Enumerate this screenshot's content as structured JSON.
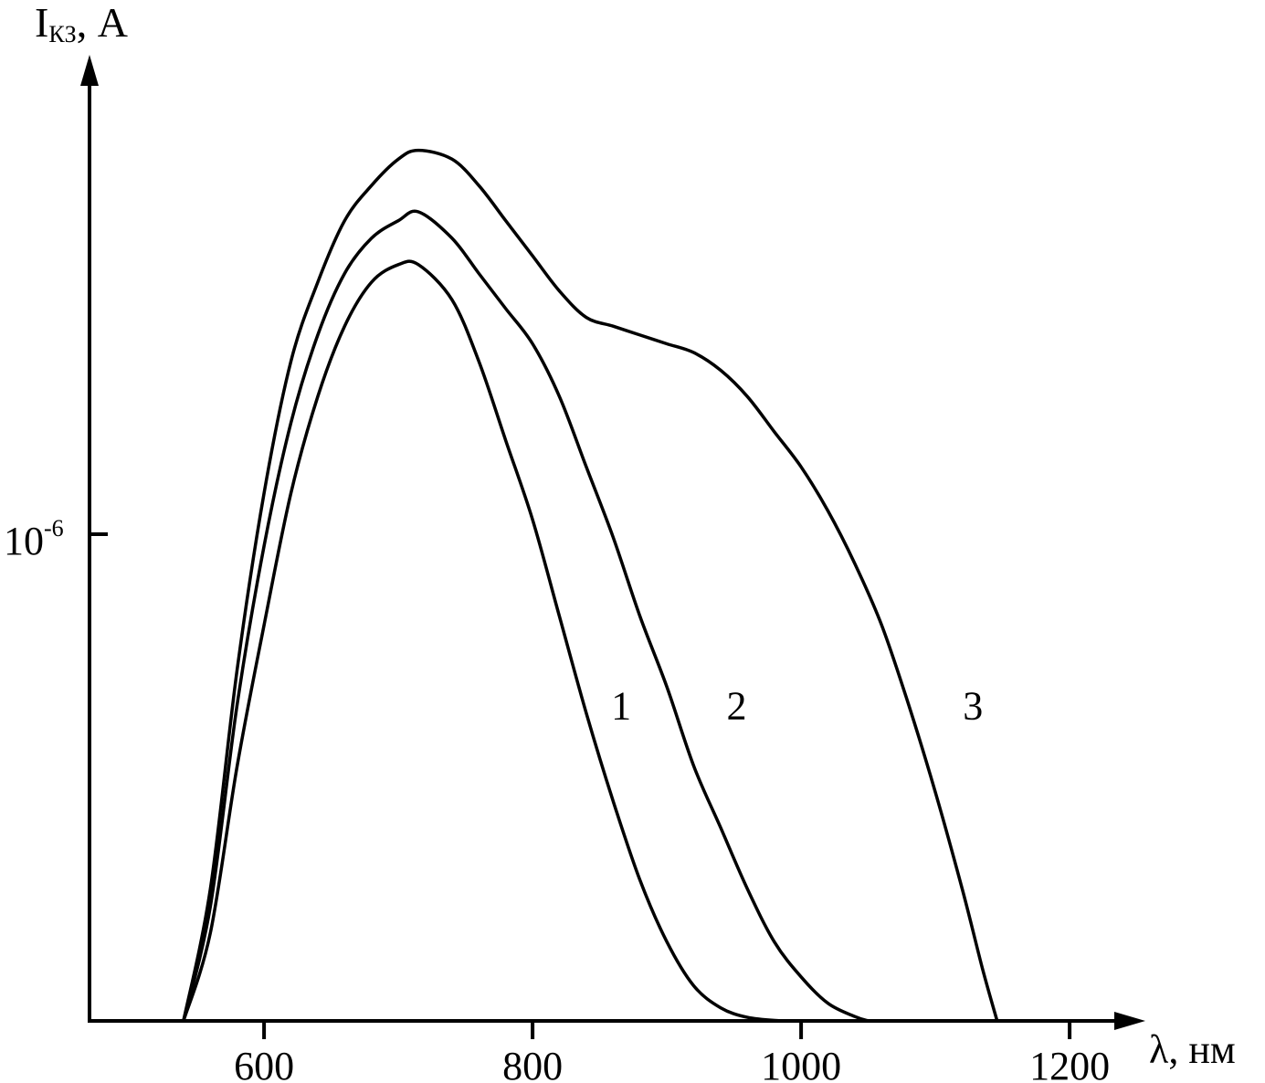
{
  "chart_data": {
    "type": "line",
    "ylabel_main": "I",
    "ylabel_sub": "КЗ",
    "ylabel_unit": ", А",
    "xlabel_symbol": "λ",
    "xlabel_unit": ", нм",
    "xlim": [
      470,
      1220
    ],
    "x_ticks": [
      {
        "value": 600,
        "label": "600"
      },
      {
        "value": 800,
        "label": "800"
      },
      {
        "value": 1000,
        "label": "1000"
      },
      {
        "value": 1200,
        "label": "1200"
      }
    ],
    "y_tick": {
      "base": "10",
      "exponent": "-6"
    },
    "series": [
      {
        "name": "1",
        "points": [
          [
            540,
            0.0
          ],
          [
            560,
            0.1
          ],
          [
            580,
            0.29
          ],
          [
            600,
            0.45
          ],
          [
            620,
            0.6
          ],
          [
            640,
            0.71
          ],
          [
            660,
            0.79
          ],
          [
            680,
            0.84
          ],
          [
            700,
            0.86
          ],
          [
            715,
            0.86
          ],
          [
            740,
            0.82
          ],
          [
            760,
            0.75
          ],
          [
            780,
            0.66
          ],
          [
            800,
            0.57
          ],
          [
            820,
            0.46
          ],
          [
            840,
            0.35
          ],
          [
            860,
            0.25
          ],
          [
            880,
            0.16
          ],
          [
            900,
            0.09
          ],
          [
            920,
            0.04
          ],
          [
            940,
            0.015
          ],
          [
            960,
            0.004
          ],
          [
            985,
            0.0
          ]
        ]
      },
      {
        "name": "2",
        "points": [
          [
            540,
            0.0
          ],
          [
            560,
            0.13
          ],
          [
            580,
            0.36
          ],
          [
            600,
            0.54
          ],
          [
            620,
            0.68
          ],
          [
            640,
            0.78
          ],
          [
            660,
            0.85
          ],
          [
            680,
            0.89
          ],
          [
            700,
            0.91
          ],
          [
            715,
            0.92
          ],
          [
            740,
            0.89
          ],
          [
            760,
            0.85
          ],
          [
            780,
            0.81
          ],
          [
            800,
            0.77
          ],
          [
            820,
            0.71
          ],
          [
            840,
            0.63
          ],
          [
            860,
            0.55
          ],
          [
            880,
            0.46
          ],
          [
            900,
            0.38
          ],
          [
            920,
            0.29
          ],
          [
            940,
            0.22
          ],
          [
            960,
            0.15
          ],
          [
            980,
            0.09
          ],
          [
            1000,
            0.05
          ],
          [
            1020,
            0.02
          ],
          [
            1040,
            0.005
          ],
          [
            1050,
            0.0
          ]
        ]
      },
      {
        "name": "3",
        "points": [
          [
            540,
            0.0
          ],
          [
            560,
            0.15
          ],
          [
            580,
            0.4
          ],
          [
            600,
            0.6
          ],
          [
            620,
            0.75
          ],
          [
            640,
            0.84
          ],
          [
            660,
            0.91
          ],
          [
            680,
            0.95
          ],
          [
            700,
            0.98
          ],
          [
            715,
            0.99
          ],
          [
            740,
            0.98
          ],
          [
            760,
            0.95
          ],
          [
            780,
            0.91
          ],
          [
            800,
            0.87
          ],
          [
            820,
            0.83
          ],
          [
            840,
            0.8
          ],
          [
            860,
            0.79
          ],
          [
            880,
            0.78
          ],
          [
            900,
            0.77
          ],
          [
            920,
            0.76
          ],
          [
            940,
            0.74
          ],
          [
            960,
            0.71
          ],
          [
            980,
            0.67
          ],
          [
            1000,
            0.63
          ],
          [
            1020,
            0.58
          ],
          [
            1040,
            0.52
          ],
          [
            1060,
            0.45
          ],
          [
            1080,
            0.36
          ],
          [
            1100,
            0.26
          ],
          [
            1120,
            0.15
          ],
          [
            1135,
            0.06
          ],
          [
            1146,
            0.0
          ]
        ]
      }
    ],
    "curve_labels": [
      {
        "text": "1",
        "x": 866,
        "y": 0.36
      },
      {
        "text": "2",
        "x": 952,
        "y": 0.36
      },
      {
        "text": "3",
        "x": 1128,
        "y": 0.36
      }
    ]
  }
}
